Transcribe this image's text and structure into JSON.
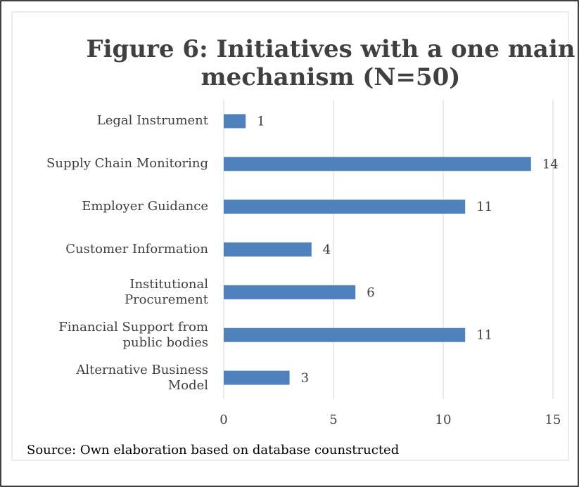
{
  "chart_data": {
    "type": "bar",
    "orientation": "horizontal",
    "title": "Figure 6: Initiatives with a one main\nmechanism (N=50)",
    "source": "Source: Own elaboration based on database counstructed",
    "categories": [
      "Legal Instrument",
      "Supply Chain Monitoring",
      "Employer Guidance",
      "Customer Information",
      "Institutional\nProcurement",
      "Financial Support from\npublic bodies",
      "Alternative Business\nModel"
    ],
    "values": [
      1,
      14,
      11,
      4,
      6,
      11,
      3
    ],
    "color": "#4f81bd",
    "xlim": [
      0,
      15
    ],
    "xticks": [
      0,
      5,
      10,
      15
    ],
    "grid": true
  }
}
